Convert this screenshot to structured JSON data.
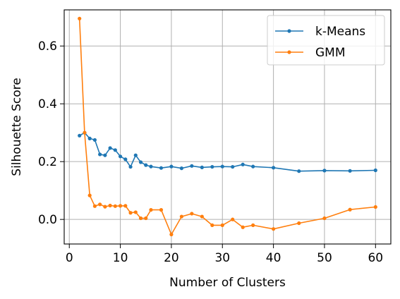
{
  "chart_data": {
    "type": "line",
    "title": "",
    "xlabel": "Number of Clusters",
    "ylabel": "Silhouette Score",
    "xlim": [
      -1,
      63
    ],
    "ylim": [
      -0.085,
      0.725
    ],
    "xticks": [
      0,
      10,
      20,
      30,
      40,
      50,
      60
    ],
    "yticks": [
      0.0,
      0.2,
      0.4,
      0.6
    ],
    "ytick_labels": [
      "0.0",
      "0.2",
      "0.4",
      "0.6"
    ],
    "grid": true,
    "legend_position": "top-right",
    "series": [
      {
        "name": "k-Means",
        "color": "#1f77b4",
        "x": [
          2,
          3,
          4,
          5,
          6,
          7,
          8,
          9,
          10,
          11,
          12,
          13,
          14,
          15,
          16,
          18,
          20,
          22,
          24,
          26,
          28,
          30,
          32,
          34,
          36,
          40,
          45,
          50,
          55,
          60
        ],
        "y": [
          0.29,
          0.3,
          0.28,
          0.275,
          0.225,
          0.222,
          0.247,
          0.24,
          0.218,
          0.208,
          0.182,
          0.222,
          0.198,
          0.188,
          0.183,
          0.178,
          0.183,
          0.177,
          0.185,
          0.18,
          0.182,
          0.183,
          0.182,
          0.19,
          0.183,
          0.179,
          0.167,
          0.169,
          0.168,
          0.17
        ]
      },
      {
        "name": "GMM",
        "color": "#ff7f0e",
        "x": [
          2,
          3,
          4,
          5,
          6,
          7,
          8,
          9,
          10,
          11,
          12,
          13,
          14,
          15,
          16,
          18,
          20,
          22,
          24,
          26,
          28,
          30,
          32,
          34,
          36,
          40,
          45,
          50,
          55,
          60
        ],
        "y": [
          0.695,
          0.3,
          0.083,
          0.046,
          0.052,
          0.044,
          0.048,
          0.046,
          0.047,
          0.047,
          0.023,
          0.025,
          0.004,
          0.004,
          0.033,
          0.033,
          -0.052,
          0.01,
          0.02,
          0.01,
          -0.02,
          -0.02,
          0.0,
          -0.027,
          -0.02,
          -0.033,
          -0.013,
          0.004,
          0.034,
          0.043
        ]
      }
    ]
  }
}
